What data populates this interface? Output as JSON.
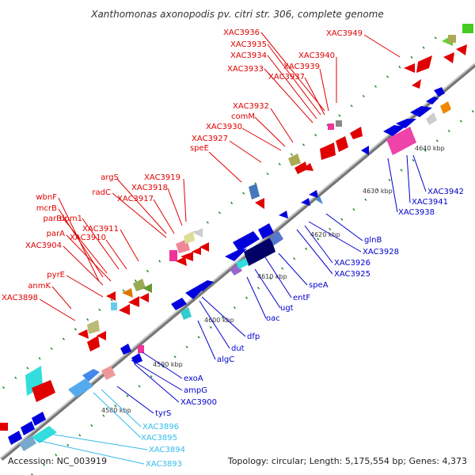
{
  "title": "Xanthomonas axonopodis pv. citri str. 306, complete genome",
  "accession": "Accession: NC_003919",
  "summary": "Topology: circular; Length: 5,175,554 bp; Genes: 4,373",
  "colors": {
    "forward_label": "#e00000",
    "reverse_label": "#0000cc",
    "rna_label": "#33bbee",
    "backbone": "#999999",
    "tick_dot": "#228822"
  },
  "ticks": [
    "4580 kbp",
    "4590 kbp",
    "4600 kbp",
    "4610 kbp",
    "4620 kbp",
    "4630 kbp",
    "4640 kbp"
  ],
  "forward_labels": [
    "XAC3936",
    "XAC3935",
    "XAC3934",
    "XAC3933",
    "XAC3940",
    "XAC3939",
    "XAC3937",
    "XAC3949",
    "XAC3932",
    "comM",
    "XAC3930",
    "XAC3927",
    "speE",
    "argS",
    "XAC3919",
    "XAC3918",
    "radC",
    "XAC3917",
    "wbnF",
    "mcrB",
    "parB",
    "dpm1",
    "XAC3911",
    "parA",
    "XAC3910",
    "XAC3904",
    "pyrE",
    "anmK",
    "XAC3898"
  ],
  "reverse_labels": [
    "XAC3942",
    "XAC3941",
    "XAC3938",
    "glnB",
    "XAC3928",
    "XAC3926",
    "XAC3925",
    "speA",
    "entF",
    "ugt",
    "oac",
    "dfp",
    "dut",
    "algC",
    "exoA",
    "ampG",
    "XAC3900",
    "tyrS"
  ],
  "rna_labels": [
    "XAC3896",
    "XAC3895",
    "XAC3894",
    "XAC3893"
  ]
}
